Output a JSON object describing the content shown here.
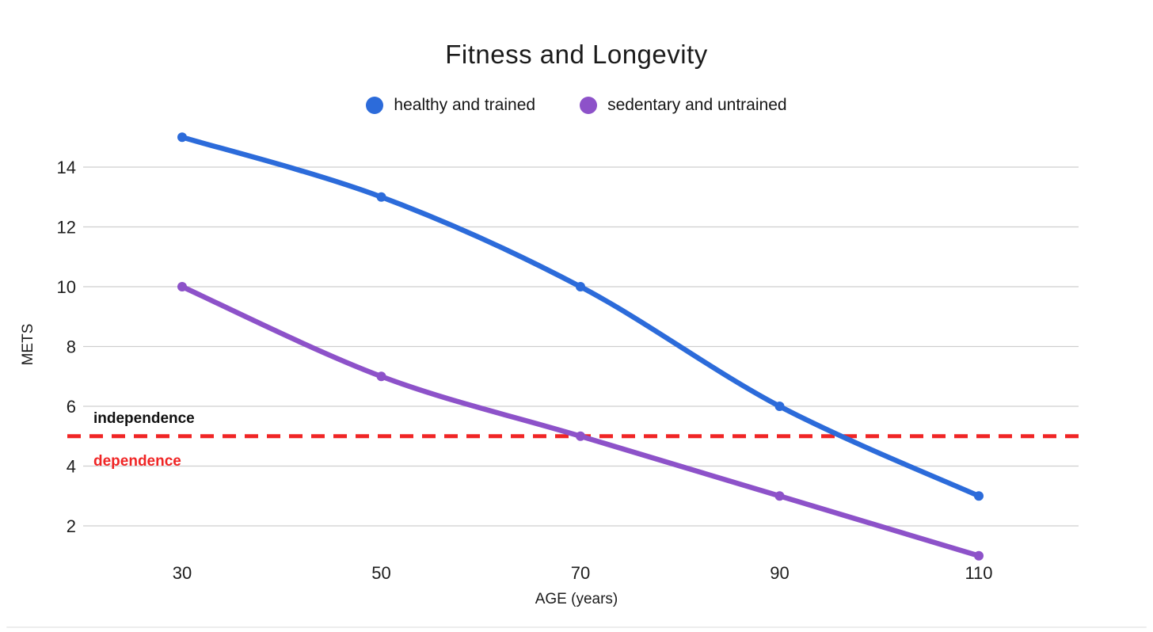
{
  "chart_data": {
    "type": "line",
    "title": "Fitness and Longevity",
    "xlabel": "AGE (years)",
    "ylabel": "METS",
    "x": [
      30,
      50,
      70,
      90,
      110
    ],
    "x_tick_labels": [
      "30",
      "50",
      "70",
      "90",
      "110"
    ],
    "y_ticks": [
      2,
      4,
      6,
      8,
      10,
      12,
      14
    ],
    "xlim": [
      20,
      120
    ],
    "ylim": [
      0.8,
      15.4
    ],
    "grid": "horizontal",
    "legend_position": "top",
    "series": [
      {
        "name": "healthy and trained",
        "color": "#2c6bda",
        "values": [
          15,
          13,
          10,
          6,
          3
        ]
      },
      {
        "name": "sedentary and untrained",
        "color": "#8d52c9",
        "values": [
          10,
          7,
          5,
          3,
          1
        ]
      }
    ],
    "threshold": {
      "value": 5,
      "color": "#f02525",
      "line_style": "dashed",
      "label_above": {
        "text": "independence",
        "color": "#111111"
      },
      "label_below": {
        "text": "dependence",
        "color": "#f02525"
      }
    }
  },
  "colors": {
    "background": "#ffffff",
    "gridline": "#cfcfcf",
    "tick_text": "#1d1d1d"
  }
}
